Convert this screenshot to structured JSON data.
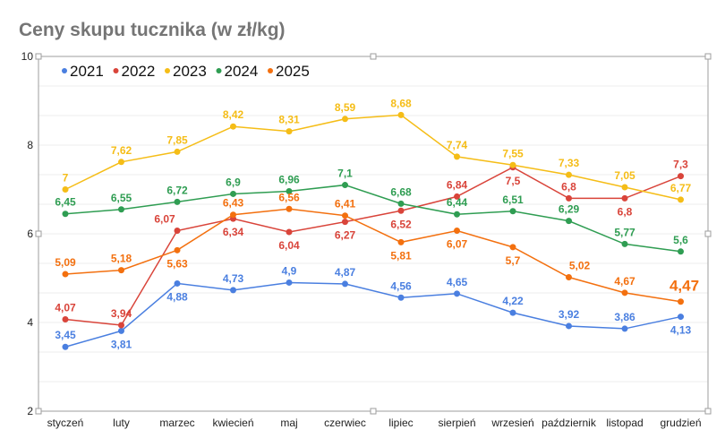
{
  "chart_data": {
    "type": "line",
    "title": "Ceny skupu tucznika (w zł/kg)",
    "xlabel": "",
    "ylabel": "",
    "ylim": [
      2,
      10
    ],
    "yticks": [
      2,
      4,
      6,
      8,
      10
    ],
    "grid": true,
    "legend_position": "top-left",
    "categories": [
      "styczeń",
      "luty",
      "marzec",
      "kwiecień",
      "maj",
      "czerwiec",
      "lipiec",
      "sierpień",
      "wrzesień",
      "październik",
      "listopad",
      "grudzień"
    ],
    "series": [
      {
        "name": "2021",
        "color": "#4a7fe0",
        "values": [
          3.45,
          3.81,
          4.88,
          4.73,
          4.9,
          4.87,
          4.56,
          4.65,
          4.22,
          3.92,
          3.86,
          4.13
        ]
      },
      {
        "name": "2022",
        "color": "#d9443a",
        "values": [
          4.07,
          3.94,
          6.07,
          6.34,
          6.04,
          6.27,
          6.52,
          6.84,
          7.5,
          6.8,
          6.8,
          7.3
        ]
      },
      {
        "name": "2023",
        "color": "#f5bd17",
        "values": [
          7,
          7.62,
          7.85,
          8.42,
          8.31,
          8.59,
          8.68,
          7.74,
          7.55,
          7.33,
          7.05,
          6.77
        ]
      },
      {
        "name": "2024",
        "color": "#2f9d52",
        "values": [
          6.45,
          6.55,
          6.72,
          6.9,
          6.96,
          7.1,
          6.68,
          6.44,
          6.51,
          6.29,
          5.77,
          5.6
        ]
      },
      {
        "name": "2025",
        "color": "#f3700f",
        "values": [
          5.09,
          5.18,
          5.63,
          6.43,
          6.56,
          6.41,
          5.81,
          6.07,
          5.7,
          5.02,
          4.67,
          4.47
        ]
      }
    ],
    "highlighted_label": {
      "series": "2025",
      "category": "grudzień",
      "value": 4.47
    }
  }
}
